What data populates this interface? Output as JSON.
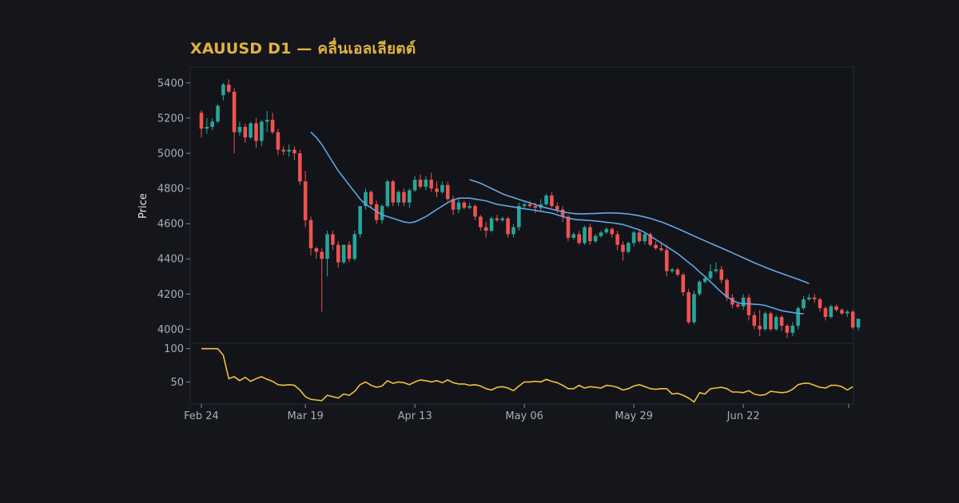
{
  "chart_data": {
    "type": "candlestick",
    "title": "XAUUSD D1 — คลื่นเอลเลียตต์",
    "ylabel": "Price",
    "x_tick_labels": [
      "Feb 24",
      "Mar 19",
      "Apr 13",
      "May 06",
      "May 29",
      "Jun 22"
    ],
    "price_panel": {
      "ylim": [
        3920,
        5490
      ],
      "y_ticks": [
        4000,
        4200,
        4400,
        4600,
        4800,
        5000,
        5200,
        5400
      ],
      "candles": [
        [
          5230,
          5245,
          5090,
          5140
        ],
        [
          5140,
          5200,
          5110,
          5150
        ],
        [
          5150,
          5200,
          5130,
          5180
        ],
        [
          5180,
          5280,
          5170,
          5270
        ],
        [
          5330,
          5400,
          5300,
          5390
        ],
        [
          5390,
          5420,
          5340,
          5350
        ],
        [
          5350,
          5370,
          5000,
          5120
        ],
        [
          5120,
          5180,
          5100,
          5150
        ],
        [
          5150,
          5170,
          5060,
          5090
        ],
        [
          5090,
          5180,
          5080,
          5170
        ],
        [
          5170,
          5200,
          5030,
          5070
        ],
        [
          5070,
          5190,
          5040,
          5180
        ],
        [
          5180,
          5240,
          5120,
          5190
        ],
        [
          5190,
          5230,
          5110,
          5120
        ],
        [
          5120,
          5140,
          4990,
          5020
        ],
        [
          5020,
          5040,
          4990,
          5010
        ],
        [
          5010,
          5050,
          4980,
          5020
        ],
        [
          5020,
          5040,
          4960,
          5000
        ],
        [
          5000,
          5020,
          4820,
          4840
        ],
        [
          4840,
          4900,
          4580,
          4620
        ],
        [
          4620,
          4640,
          4420,
          4460
        ],
        [
          4460,
          4470,
          4400,
          4440
        ],
        [
          4440,
          4460,
          4100,
          4400
        ],
        [
          4400,
          4560,
          4300,
          4540
        ],
        [
          4540,
          4560,
          4450,
          4480
        ],
        [
          4480,
          4500,
          4350,
          4380
        ],
        [
          4380,
          4480,
          4370,
          4480
        ],
        [
          4480,
          4500,
          4380,
          4400
        ],
        [
          4400,
          4560,
          4390,
          4540
        ],
        [
          4540,
          4700,
          4520,
          4700
        ],
        [
          4700,
          4800,
          4680,
          4780
        ],
        [
          4780,
          4790,
          4690,
          4710
        ],
        [
          4710,
          4730,
          4600,
          4620
        ],
        [
          4620,
          4710,
          4600,
          4700
        ],
        [
          4700,
          4850,
          4690,
          4840
        ],
        [
          4840,
          4850,
          4700,
          4720
        ],
        [
          4720,
          4790,
          4700,
          4780
        ],
        [
          4780,
          4800,
          4700,
          4720
        ],
        [
          4720,
          4800,
          4690,
          4790
        ],
        [
          4790,
          4870,
          4780,
          4850
        ],
        [
          4850,
          4880,
          4800,
          4810
        ],
        [
          4810,
          4870,
          4790,
          4850
        ],
        [
          4850,
          4890,
          4780,
          4800
        ],
        [
          4800,
          4840,
          4750,
          4780
        ],
        [
          4780,
          4840,
          4770,
          4820
        ],
        [
          4820,
          4840,
          4730,
          4740
        ],
        [
          4740,
          4760,
          4650,
          4680
        ],
        [
          4680,
          4740,
          4660,
          4720
        ],
        [
          4720,
          4730,
          4680,
          4690
        ],
        [
          4690,
          4720,
          4680,
          4700
        ],
        [
          4700,
          4710,
          4620,
          4640
        ],
        [
          4640,
          4650,
          4560,
          4580
        ],
        [
          4580,
          4610,
          4520,
          4560
        ],
        [
          4560,
          4640,
          4550,
          4630
        ],
        [
          4630,
          4650,
          4610,
          4620
        ],
        [
          4620,
          4640,
          4610,
          4630
        ],
        [
          4630,
          4640,
          4520,
          4540
        ],
        [
          4540,
          4600,
          4520,
          4580
        ],
        [
          4580,
          4720,
          4560,
          4700
        ],
        [
          4700,
          4720,
          4690,
          4710
        ],
        [
          4710,
          4730,
          4690,
          4700
        ],
        [
          4700,
          4720,
          4660,
          4690
        ],
        [
          4690,
          4740,
          4670,
          4710
        ],
        [
          4710,
          4770,
          4700,
          4760
        ],
        [
          4760,
          4780,
          4690,
          4700
        ],
        [
          4700,
          4720,
          4660,
          4680
        ],
        [
          4680,
          4700,
          4610,
          4640
        ],
        [
          4640,
          4650,
          4500,
          4520
        ],
        [
          4520,
          4550,
          4510,
          4540
        ],
        [
          4540,
          4560,
          4480,
          4490
        ],
        [
          4490,
          4590,
          4480,
          4580
        ],
        [
          4580,
          4600,
          4480,
          4500
        ],
        [
          4500,
          4540,
          4490,
          4530
        ],
        [
          4530,
          4560,
          4520,
          4550
        ],
        [
          4550,
          4580,
          4540,
          4570
        ],
        [
          4570,
          4580,
          4520,
          4540
        ],
        [
          4540,
          4560,
          4450,
          4480
        ],
        [
          4480,
          4500,
          4390,
          4440
        ],
        [
          4440,
          4500,
          4430,
          4490
        ],
        [
          4490,
          4560,
          4470,
          4550
        ],
        [
          4550,
          4560,
          4490,
          4500
        ],
        [
          4500,
          4550,
          4480,
          4540
        ],
        [
          4540,
          4550,
          4470,
          4480
        ],
        [
          4480,
          4500,
          4450,
          4460
        ],
        [
          4460,
          4490,
          4440,
          4450
        ],
        [
          4450,
          4480,
          4300,
          4330
        ],
        [
          4330,
          4350,
          4320,
          4340
        ],
        [
          4340,
          4350,
          4300,
          4310
        ],
        [
          4310,
          4320,
          4190,
          4210
        ],
        [
          4210,
          4230,
          4030,
          4040
        ],
        [
          4040,
          4220,
          4030,
          4200
        ],
        [
          4200,
          4280,
          4190,
          4270
        ],
        [
          4270,
          4300,
          4260,
          4290
        ],
        [
          4290,
          4370,
          4280,
          4330
        ],
        [
          4330,
          4380,
          4320,
          4340
        ],
        [
          4340,
          4360,
          4260,
          4280
        ],
        [
          4280,
          4290,
          4160,
          4180
        ],
        [
          4180,
          4200,
          4120,
          4140
        ],
        [
          4140,
          4150,
          4120,
          4130
        ],
        [
          4130,
          4200,
          4110,
          4180
        ],
        [
          4180,
          4200,
          4050,
          4080
        ],
        [
          4080,
          4100,
          4000,
          4020
        ],
        [
          4020,
          4110,
          3960,
          4000
        ],
        [
          4000,
          4100,
          3990,
          4090
        ],
        [
          4090,
          4100,
          3990,
          4000
        ],
        [
          4000,
          4080,
          3990,
          4070
        ],
        [
          4070,
          4080,
          3990,
          4020
        ],
        [
          4020,
          4030,
          3950,
          3980
        ],
        [
          3980,
          4040,
          3960,
          4020
        ],
        [
          4020,
          4130,
          4000,
          4120
        ],
        [
          4120,
          4190,
          4110,
          4170
        ],
        [
          4170,
          4200,
          4160,
          4180
        ],
        [
          4180,
          4200,
          4150,
          4170
        ],
        [
          4170,
          4180,
          4100,
          4120
        ],
        [
          4120,
          4130,
          4050,
          4070
        ],
        [
          4070,
          4140,
          4060,
          4130
        ],
        [
          4130,
          4140,
          4100,
          4110
        ],
        [
          4110,
          4120,
          4080,
          4090
        ],
        [
          4090,
          4110,
          4070,
          4100
        ],
        [
          4100,
          4110,
          4000,
          4010
        ],
        [
          4010,
          4060,
          3990,
          4060
        ]
      ],
      "ma_fast": {
        "start_index": 20,
        "values": [
          5120,
          5090,
          5050,
          5000,
          4950,
          4900,
          4860,
          4820,
          4780,
          4740,
          4710,
          4690,
          4670,
          4650,
          4640,
          4630,
          4620,
          4610,
          4605,
          4610,
          4625,
          4640,
          4660,
          4680,
          4700,
          4720,
          4735,
          4745,
          4745,
          4745,
          4740,
          4735,
          4730,
          4720,
          4710,
          4705,
          4700,
          4695,
          4690,
          4685,
          4680,
          4675,
          4670,
          4665,
          4660,
          4650,
          4640,
          4630,
          4625,
          4622,
          4620,
          4618,
          4615,
          4612,
          4608,
          4605,
          4600,
          4595,
          4585,
          4575,
          4565,
          4550,
          4530,
          4510,
          4490,
          4470,
          4450,
          4430,
          4405,
          4380,
          4355,
          4325,
          4300,
          4270,
          4240,
          4210,
          4185,
          4165,
          4150,
          4145,
          4145,
          4142,
          4140,
          4135,
          4125,
          4115,
          4105,
          4100,
          4095,
          4090,
          4088
        ]
      },
      "ma_slow": {
        "start_index": 49,
        "values": [
          4850,
          4840,
          4830,
          4815,
          4800,
          4785,
          4770,
          4758,
          4748,
          4738,
          4728,
          4718,
          4708,
          4698,
          4690,
          4682,
          4675,
          4668,
          4662,
          4658,
          4656,
          4656,
          4657,
          4658,
          4660,
          4661,
          4661,
          4660,
          4658,
          4655,
          4650,
          4645,
          4638,
          4630,
          4620,
          4610,
          4598,
          4585,
          4572,
          4558,
          4544,
          4530,
          4516,
          4502,
          4488,
          4475,
          4462,
          4448,
          4434,
          4420,
          4406,
          4392,
          4378,
          4365,
          4352,
          4340,
          4328,
          4317,
          4306,
          4295,
          4284,
          4272,
          4260
        ]
      }
    },
    "oscillator_panel": {
      "ylim": [
        17,
        108
      ],
      "y_ticks": [
        50,
        100
      ],
      "values": [
        100,
        100,
        100,
        100,
        90,
        55,
        58,
        52,
        57,
        51,
        55,
        58,
        54,
        51,
        46,
        45,
        46,
        45,
        38,
        28,
        24,
        23,
        22,
        30,
        28,
        26,
        32,
        30,
        36,
        46,
        50,
        45,
        42,
        44,
        52,
        48,
        50,
        49,
        46,
        50,
        53,
        52,
        50,
        52,
        49,
        53,
        49,
        47,
        47,
        45,
        46,
        44,
        40,
        38,
        42,
        43,
        41,
        37,
        44,
        50,
        50,
        51,
        50,
        54,
        51,
        49,
        45,
        40,
        40,
        45,
        41,
        43,
        42,
        41,
        45,
        44,
        42,
        38,
        40,
        44,
        46,
        43,
        40,
        39,
        40,
        40,
        32,
        33,
        30,
        26,
        20,
        34,
        32,
        40,
        41,
        42,
        40,
        35,
        35,
        34,
        37,
        32,
        30,
        31,
        36,
        35,
        34,
        35,
        39,
        46,
        48,
        48,
        45,
        42,
        41,
        45,
        45,
        43,
        38,
        43
      ]
    },
    "colors": {
      "up": "#26a69a",
      "down": "#ef5350",
      "ma_fast": "#5ea8e8",
      "ma_slow": "#6aa6ea",
      "oscillator": "#f2c233",
      "title": "#e2b33f"
    },
    "grid": false
  }
}
